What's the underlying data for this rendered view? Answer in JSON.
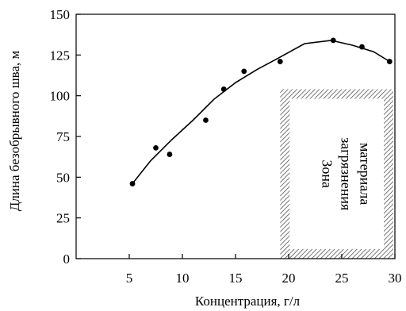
{
  "chart_data": {
    "type": "line",
    "xlabel": "Концентрация, г/л",
    "ylabel": "Длина безобрывного шва, м",
    "xlim": [
      0,
      30
    ],
    "ylim": [
      0,
      150
    ],
    "xticks": [
      5,
      10,
      15,
      20,
      25,
      30
    ],
    "yticks": [
      0,
      25,
      50,
      75,
      100,
      125,
      150
    ],
    "grid": false,
    "series": [
      {
        "kind": "scatter",
        "x": [
          5.3,
          7.5,
          8.8,
          12.2,
          13.9,
          15.8,
          19.2,
          24.2,
          26.9,
          29.5
        ],
        "y": [
          46,
          68,
          64,
          85,
          104,
          115,
          121,
          134,
          130,
          121
        ]
      },
      {
        "kind": "line",
        "x": [
          5.3,
          7.0,
          9.0,
          11.0,
          13.0,
          15.0,
          17.0,
          19.0,
          21.5,
          24.0,
          26.0,
          28.0,
          29.5
        ],
        "y": [
          46,
          60,
          73,
          85,
          98,
          108,
          116,
          123,
          132,
          134,
          131,
          127,
          121
        ]
      }
    ],
    "annotation": {
      "lines": [
        "Зона",
        "загрязнения",
        "материала"
      ],
      "x_range": [
        19.2,
        30
      ],
      "y_range": [
        0,
        104
      ]
    }
  }
}
